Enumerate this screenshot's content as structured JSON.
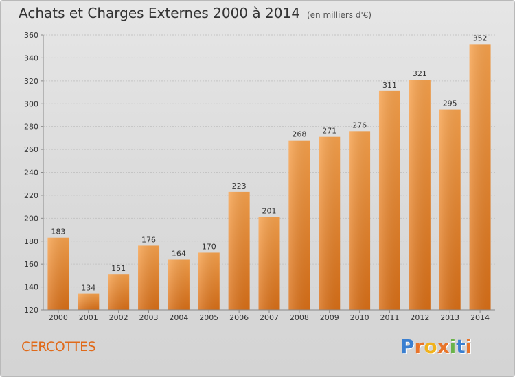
{
  "header": {
    "title": "Achats et Charges Externes 2000 à 2014",
    "subtitle": "(en milliers d'€)"
  },
  "footer": {
    "commune": "CERCOTTES",
    "logo": {
      "letters": [
        "P",
        "r",
        "o",
        "x",
        "i",
        "t",
        "i"
      ],
      "colors": [
        "#3a7fd0",
        "#e8742a",
        "#f1b21c",
        "#e8742a",
        "#6ab34a",
        "#3a7fd0",
        "#e8742a"
      ]
    }
  },
  "chart_data": {
    "type": "bar",
    "title": "Achats et Charges Externes 2000 à 2014",
    "subtitle": "(en milliers d'€)",
    "categories": [
      "2000",
      "2001",
      "2002",
      "2003",
      "2004",
      "2005",
      "2006",
      "2007",
      "2008",
      "2009",
      "2010",
      "2011",
      "2012",
      "2013",
      "2014"
    ],
    "values": [
      183,
      134,
      151,
      176,
      164,
      170,
      223,
      201,
      268,
      271,
      276,
      311,
      321,
      295,
      352
    ],
    "ylim": [
      120,
      360
    ],
    "yticks": [
      120,
      140,
      160,
      180,
      200,
      220,
      240,
      260,
      280,
      300,
      320,
      340,
      360
    ],
    "grid": true,
    "bar_color": "#f0882e"
  }
}
